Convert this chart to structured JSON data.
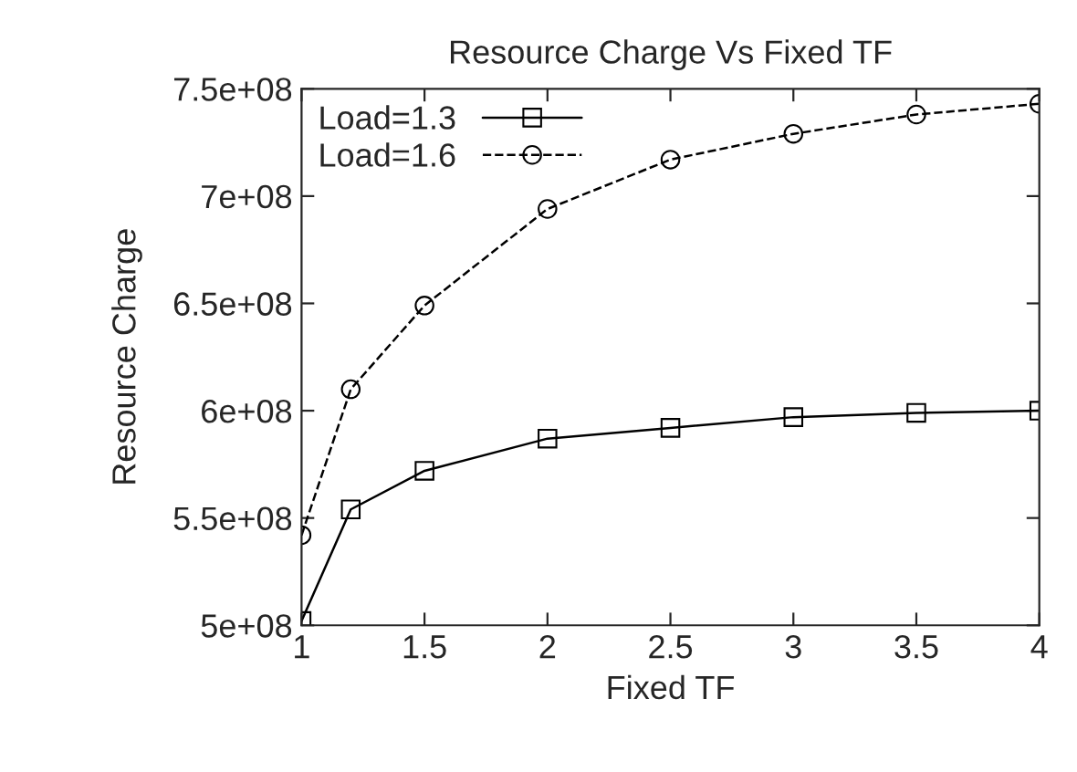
{
  "chart_data": {
    "type": "line",
    "title": "Resource Charge Vs Fixed TF",
    "xlabel": "Fixed TF",
    "ylabel": "Resource Charge",
    "x": [
      1,
      1.2,
      1.5,
      2,
      2.5,
      3,
      3.5,
      4
    ],
    "series": [
      {
        "name": "Load=1.3",
        "color": "#000000",
        "marker": "square",
        "line_style": "solid",
        "values": [
          502000000,
          554000000,
          572000000,
          587000000,
          592000000,
          597000000,
          599000000,
          600000000
        ]
      },
      {
        "name": "Load=1.6",
        "color": "#000000",
        "marker": "circle",
        "line_style": "dashed",
        "values": [
          542000000,
          610000000,
          649000000,
          694000000,
          717000000,
          729000000,
          738000000,
          743000000
        ]
      }
    ],
    "xlim": [
      1,
      4
    ],
    "xticks": [
      1,
      1.5,
      2,
      2.5,
      3,
      3.5,
      4
    ],
    "ylim": [
      500000000,
      750000000
    ],
    "yticks": [
      {
        "value": 500000000,
        "label": "5e+08"
      },
      {
        "value": 550000000,
        "label": "5.5e+08"
      },
      {
        "value": 600000000,
        "label": "6e+08"
      },
      {
        "value": 650000000,
        "label": "6.5e+08"
      },
      {
        "value": 700000000,
        "label": "7e+08"
      },
      {
        "value": 750000000,
        "label": "7.5e+08"
      }
    ],
    "grid": false,
    "legend": "top left"
  }
}
